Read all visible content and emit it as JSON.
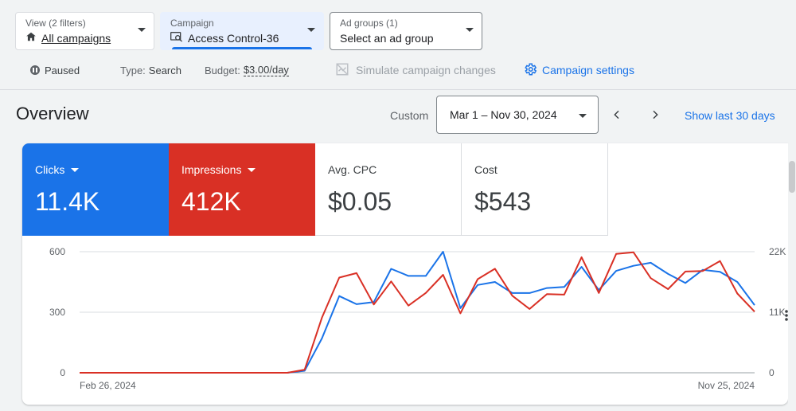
{
  "filters": {
    "view": {
      "label": "View (2 filters)",
      "value": "All campaigns"
    },
    "campaign": {
      "label": "Campaign",
      "value": "Access Control-36"
    },
    "ad_groups": {
      "label": "Ad groups (1)",
      "value": "Select an ad group"
    }
  },
  "status": {
    "paused": "Paused",
    "type_key": "Type:",
    "type_value": "Search",
    "budget_key": "Budget:",
    "budget_value": "$3.00/day",
    "simulate": "Simulate campaign changes",
    "settings": "Campaign settings"
  },
  "overview": {
    "title": "Overview",
    "custom": "Custom",
    "date_range": "Mar 1 – Nov 30, 2024",
    "show_last": "Show last 30 days"
  },
  "metrics": [
    {
      "label": "Clicks",
      "value": "11.4K",
      "color": "#1a73e8"
    },
    {
      "label": "Impressions",
      "value": "412K",
      "color": "#d93025"
    },
    {
      "label": "Avg. CPC",
      "value": "$0.05"
    },
    {
      "label": "Cost",
      "value": "$543"
    }
  ],
  "chart_data": {
    "type": "line",
    "x_start_label": "Feb 26, 2024",
    "x_end_label": "Nov 25, 2024",
    "left_axis": {
      "ticks": [
        "0",
        "300",
        "600"
      ],
      "range": [
        0,
        600
      ]
    },
    "right_axis": {
      "ticks": [
        "0",
        "11K",
        "22K"
      ],
      "range": [
        0,
        22000
      ]
    },
    "grid": true,
    "series": [
      {
        "name": "Clicks",
        "color": "#1a73e8",
        "axis": "left",
        "values": [
          0,
          0,
          0,
          0,
          0,
          0,
          0,
          0,
          0,
          0,
          0,
          0,
          0,
          10,
          170,
          380,
          340,
          350,
          515,
          480,
          480,
          600,
          320,
          435,
          450,
          395,
          395,
          420,
          425,
          525,
          410,
          505,
          530,
          545,
          490,
          445,
          510,
          500,
          450,
          335
        ]
      },
      {
        "name": "Impressions",
        "color": "#d93025",
        "axis": "right",
        "values": [
          0,
          0,
          0,
          0,
          0,
          0,
          0,
          0,
          0,
          0,
          0,
          0,
          0,
          550,
          10000,
          17300,
          18100,
          12400,
          16600,
          12200,
          14500,
          17800,
          10800,
          17000,
          18900,
          14000,
          11600,
          14300,
          14200,
          21000,
          14500,
          21600,
          21900,
          17200,
          15200,
          18400,
          18500,
          20300,
          14400,
          11100
        ]
      }
    ]
  }
}
